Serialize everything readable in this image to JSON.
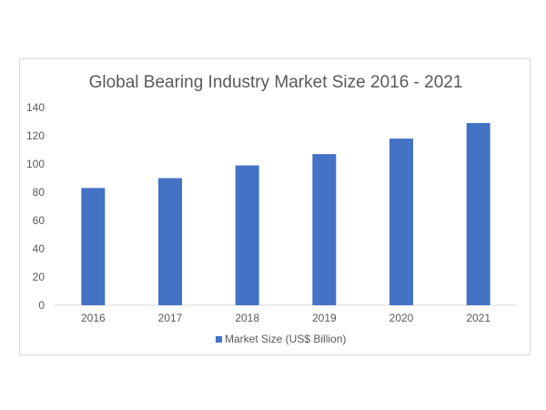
{
  "chart_data": {
    "type": "bar",
    "title": "Global Bearing Industry Market Size 2016 - 2021",
    "categories": [
      "2016",
      "2017",
      "2018",
      "2019",
      "2020",
      "2021"
    ],
    "series": [
      {
        "name": "Market Size (US$ Billion)",
        "values": [
          83,
          90,
          99,
          107,
          118,
          129
        ]
      }
    ],
    "ylim": [
      0,
      140
    ],
    "yticks": [
      "0",
      "20",
      "40",
      "60",
      "80",
      "100",
      "120",
      "140"
    ],
    "grid": false,
    "legend_position": "bottom",
    "colors": {
      "bar": "#4472c4",
      "axis": "#d9d9d9",
      "text": "#595959"
    }
  }
}
